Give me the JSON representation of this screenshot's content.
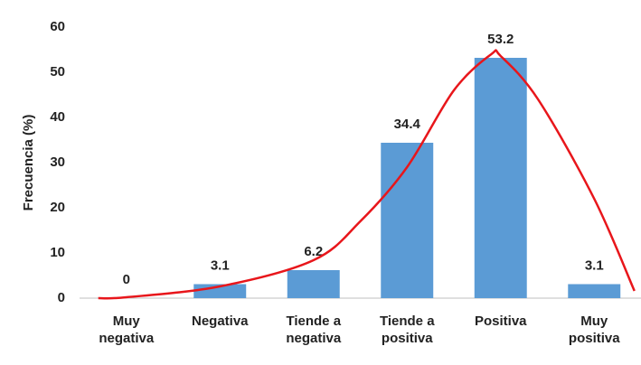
{
  "chart_data": {
    "type": "bar",
    "y_label": "Frecuencia (%)",
    "categories": [
      "Muy\nnegativa",
      "Negativa",
      "Tiende a\nnegativa",
      "Tiende a\npositiva",
      "Positiva",
      "Muy\npositiva"
    ],
    "values": [
      0,
      3.1,
      6.2,
      34.4,
      53.2,
      3.1
    ],
    "color": "#5b9bd5",
    "ylim": [
      0,
      60
    ],
    "yticks": [
      0,
      10,
      20,
      30,
      40,
      50,
      60
    ],
    "grid": false,
    "curve": {
      "type": "line",
      "color": "#e8161b",
      "x": [
        -0.3,
        0,
        1,
        2,
        2.5,
        3,
        3.5,
        3.9,
        4,
        4.4,
        5,
        5.43
      ],
      "values": [
        0,
        0.2,
        2.6,
        8.4,
        17,
        29,
        46,
        54,
        53.6,
        44,
        22,
        1.6
      ]
    }
  }
}
